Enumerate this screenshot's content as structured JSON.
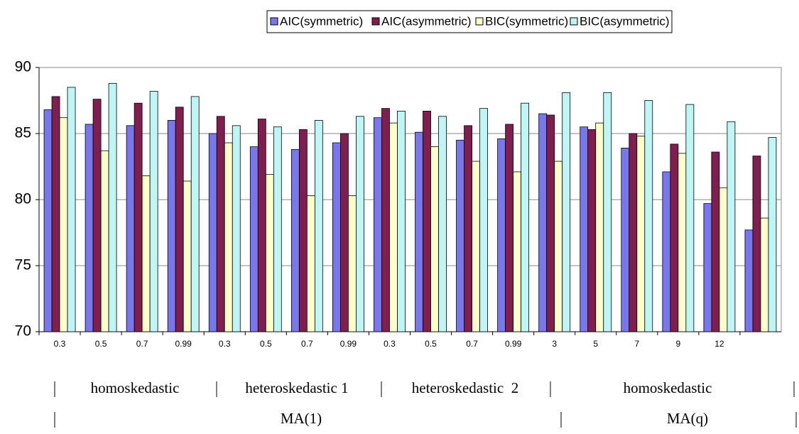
{
  "chart_data": {
    "type": "bar",
    "categories": [
      "0.3",
      "0.5",
      "0.7",
      "0.99",
      "0.3",
      "0.5",
      "0.7",
      "0.99",
      "0.3",
      "0.5",
      "0.7",
      "0.99",
      "3",
      "5",
      "7",
      "9",
      "12",
      null
    ],
    "series": [
      {
        "name": "AIC(symmetric)",
        "color": "#7878ec",
        "values": [
          86.8,
          85.7,
          85.6,
          86.0,
          85.0,
          84.0,
          83.8,
          84.3,
          86.2,
          85.1,
          84.5,
          84.6,
          86.5,
          85.5,
          83.9,
          82.1,
          79.7,
          77.7
        ]
      },
      {
        "name": "AIC(asymmetric)",
        "color": "#7f1f4f",
        "values": [
          87.8,
          87.6,
          87.3,
          87.0,
          86.3,
          86.1,
          85.3,
          85.0,
          86.9,
          86.7,
          85.6,
          85.7,
          86.4,
          85.3,
          85.0,
          84.2,
          83.6,
          83.3
        ]
      },
      {
        "name": "BIC(symmetric)",
        "color": "#ffffcc",
        "values": [
          86.2,
          83.7,
          81.8,
          81.4,
          84.3,
          81.9,
          80.3,
          80.3,
          85.8,
          84.0,
          82.9,
          82.1,
          82.9,
          85.8,
          84.8,
          83.5,
          80.9,
          78.6
        ]
      },
      {
        "name": "BIC(asymmetric)",
        "color": "#bff5f5",
        "values": [
          88.5,
          88.8,
          88.2,
          87.8,
          85.6,
          85.5,
          86.0,
          86.3,
          86.7,
          86.3,
          86.9,
          87.3,
          88.1,
          88.1,
          87.5,
          87.2,
          85.9,
          84.7
        ]
      }
    ],
    "ylim": [
      70,
      90
    ],
    "yticks": [
      70,
      75,
      80,
      85,
      90
    ],
    "grid": true,
    "annotations": [
      "homoskedastic",
      "heteroskedastic 1",
      "heteroskedastic  2",
      "homoskedastic",
      "MA(1)",
      "MA(q)"
    ]
  }
}
